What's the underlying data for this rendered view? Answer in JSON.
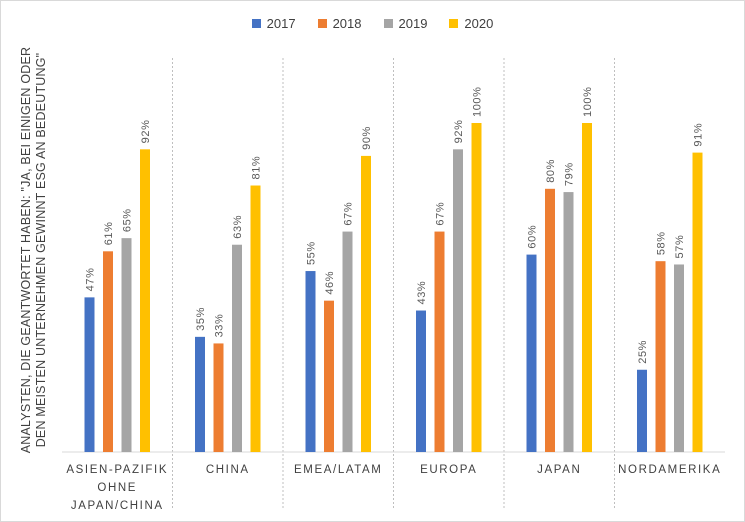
{
  "chart_data": {
    "type": "bar",
    "ylabel_lines": [
      "ANALYSTEN, DIE GEANTWORTET HABEN: \"JA, BEI EINIGEN ODER",
      "DEN MEISTEN UNTERNEHMEN GEWINNT ESG AN BEDEUTUNG\""
    ],
    "categories": [
      [
        "ASIEN-PAZIFIK",
        "OHNE",
        "JAPAN/CHINA"
      ],
      [
        "CHINA"
      ],
      [
        "EMEA/LATAM"
      ],
      [
        "EUROPA"
      ],
      [
        "JAPAN"
      ],
      [
        "NORDAMERIKA"
      ]
    ],
    "series": [
      {
        "name": "2017",
        "color": "#4472c4",
        "values": [
          47,
          35,
          55,
          43,
          60,
          25
        ]
      },
      {
        "name": "2018",
        "color": "#ed7d31",
        "values": [
          61,
          33,
          46,
          67,
          80,
          58
        ]
      },
      {
        "name": "2019",
        "color": "#a5a5a5",
        "values": [
          65,
          63,
          67,
          92,
          79,
          57
        ]
      },
      {
        "name": "2020",
        "color": "#ffc000",
        "values": [
          92,
          81,
          90,
          100,
          100,
          91
        ]
      }
    ],
    "value_suffix": "%",
    "ylim": [
      0,
      100
    ],
    "legend_position": "top",
    "grid": false
  }
}
